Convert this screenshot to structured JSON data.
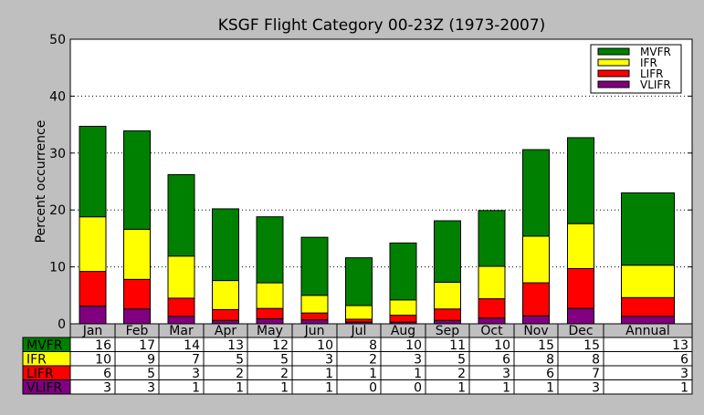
{
  "chart_data": {
    "type": "bar",
    "stacked": true,
    "title": "KSGF Flight Category 00-23Z (1973-2007)",
    "ylabel": "Percent occurrence",
    "ylim": [
      0,
      50
    ],
    "yticks": [
      0,
      10,
      20,
      30,
      40,
      50
    ],
    "grid": "horizontal dotted",
    "legend_position": "top-right",
    "categories": [
      "Jan",
      "Feb",
      "Mar",
      "Apr",
      "May",
      "Jun",
      "Jul",
      "Aug",
      "Sep",
      "Oct",
      "Nov",
      "Dec",
      "Annual"
    ],
    "series": [
      {
        "name": "VLIFR",
        "color": "#800080",
        "values": [
          3.1,
          2.6,
          1.3,
          0.6,
          0.9,
          0.7,
          0.3,
          0.3,
          0.6,
          1.0,
          1.4,
          2.7,
          1.3
        ]
      },
      {
        "name": "LIFR",
        "color": "#ff0000",
        "values": [
          6.1,
          5.2,
          3.2,
          1.9,
          1.8,
          1.2,
          0.5,
          1.2,
          2.0,
          3.4,
          5.8,
          7.0,
          3.3
        ]
      },
      {
        "name": "IFR",
        "color": "#ffff00",
        "values": [
          9.6,
          8.8,
          7.4,
          5.1,
          4.5,
          3.1,
          2.4,
          2.7,
          4.7,
          5.7,
          8.2,
          7.9,
          5.7
        ]
      },
      {
        "name": "MVFR",
        "color": "#008000",
        "values": [
          15.9,
          17.3,
          14.3,
          12.6,
          11.6,
          10.2,
          8.4,
          10.0,
          10.8,
          9.8,
          15.2,
          15.1,
          12.7
        ]
      }
    ],
    "table": {
      "columns": [
        "Jan",
        "Feb",
        "Mar",
        "Apr",
        "May",
        "Jun",
        "Jul",
        "Aug",
        "Sep",
        "Oct",
        "Nov",
        "Dec",
        "Annual"
      ],
      "rows": [
        {
          "label": "MVFR",
          "color": "#008000",
          "values": [
            "16",
            "17",
            "14",
            "13",
            "12",
            "10",
            "8",
            "10",
            "11",
            "10",
            "15",
            "15",
            "13"
          ]
        },
        {
          "label": "IFR",
          "color": "#ffff00",
          "values": [
            "10",
            "9",
            "7",
            "5",
            "5",
            "3",
            "2",
            "3",
            "5",
            "6",
            "8",
            "8",
            "6"
          ]
        },
        {
          "label": "LIFR",
          "color": "#ff0000",
          "values": [
            "6",
            "5",
            "3",
            "2",
            "2",
            "1",
            "1",
            "1",
            "2",
            "3",
            "6",
            "7",
            "3"
          ]
        },
        {
          "label": "VLIFR",
          "color": "#800080",
          "values": [
            "3",
            "3",
            "1",
            "1",
            "1",
            "1",
            "0",
            "0",
            "1",
            "1",
            "1",
            "3",
            "1"
          ]
        }
      ]
    },
    "legend": [
      {
        "label": "MVFR",
        "color": "#008000"
      },
      {
        "label": "IFR",
        "color": "#ffff00"
      },
      {
        "label": "LIFR",
        "color": "#ff0000"
      },
      {
        "label": "VLIFR",
        "color": "#800080"
      }
    ]
  }
}
